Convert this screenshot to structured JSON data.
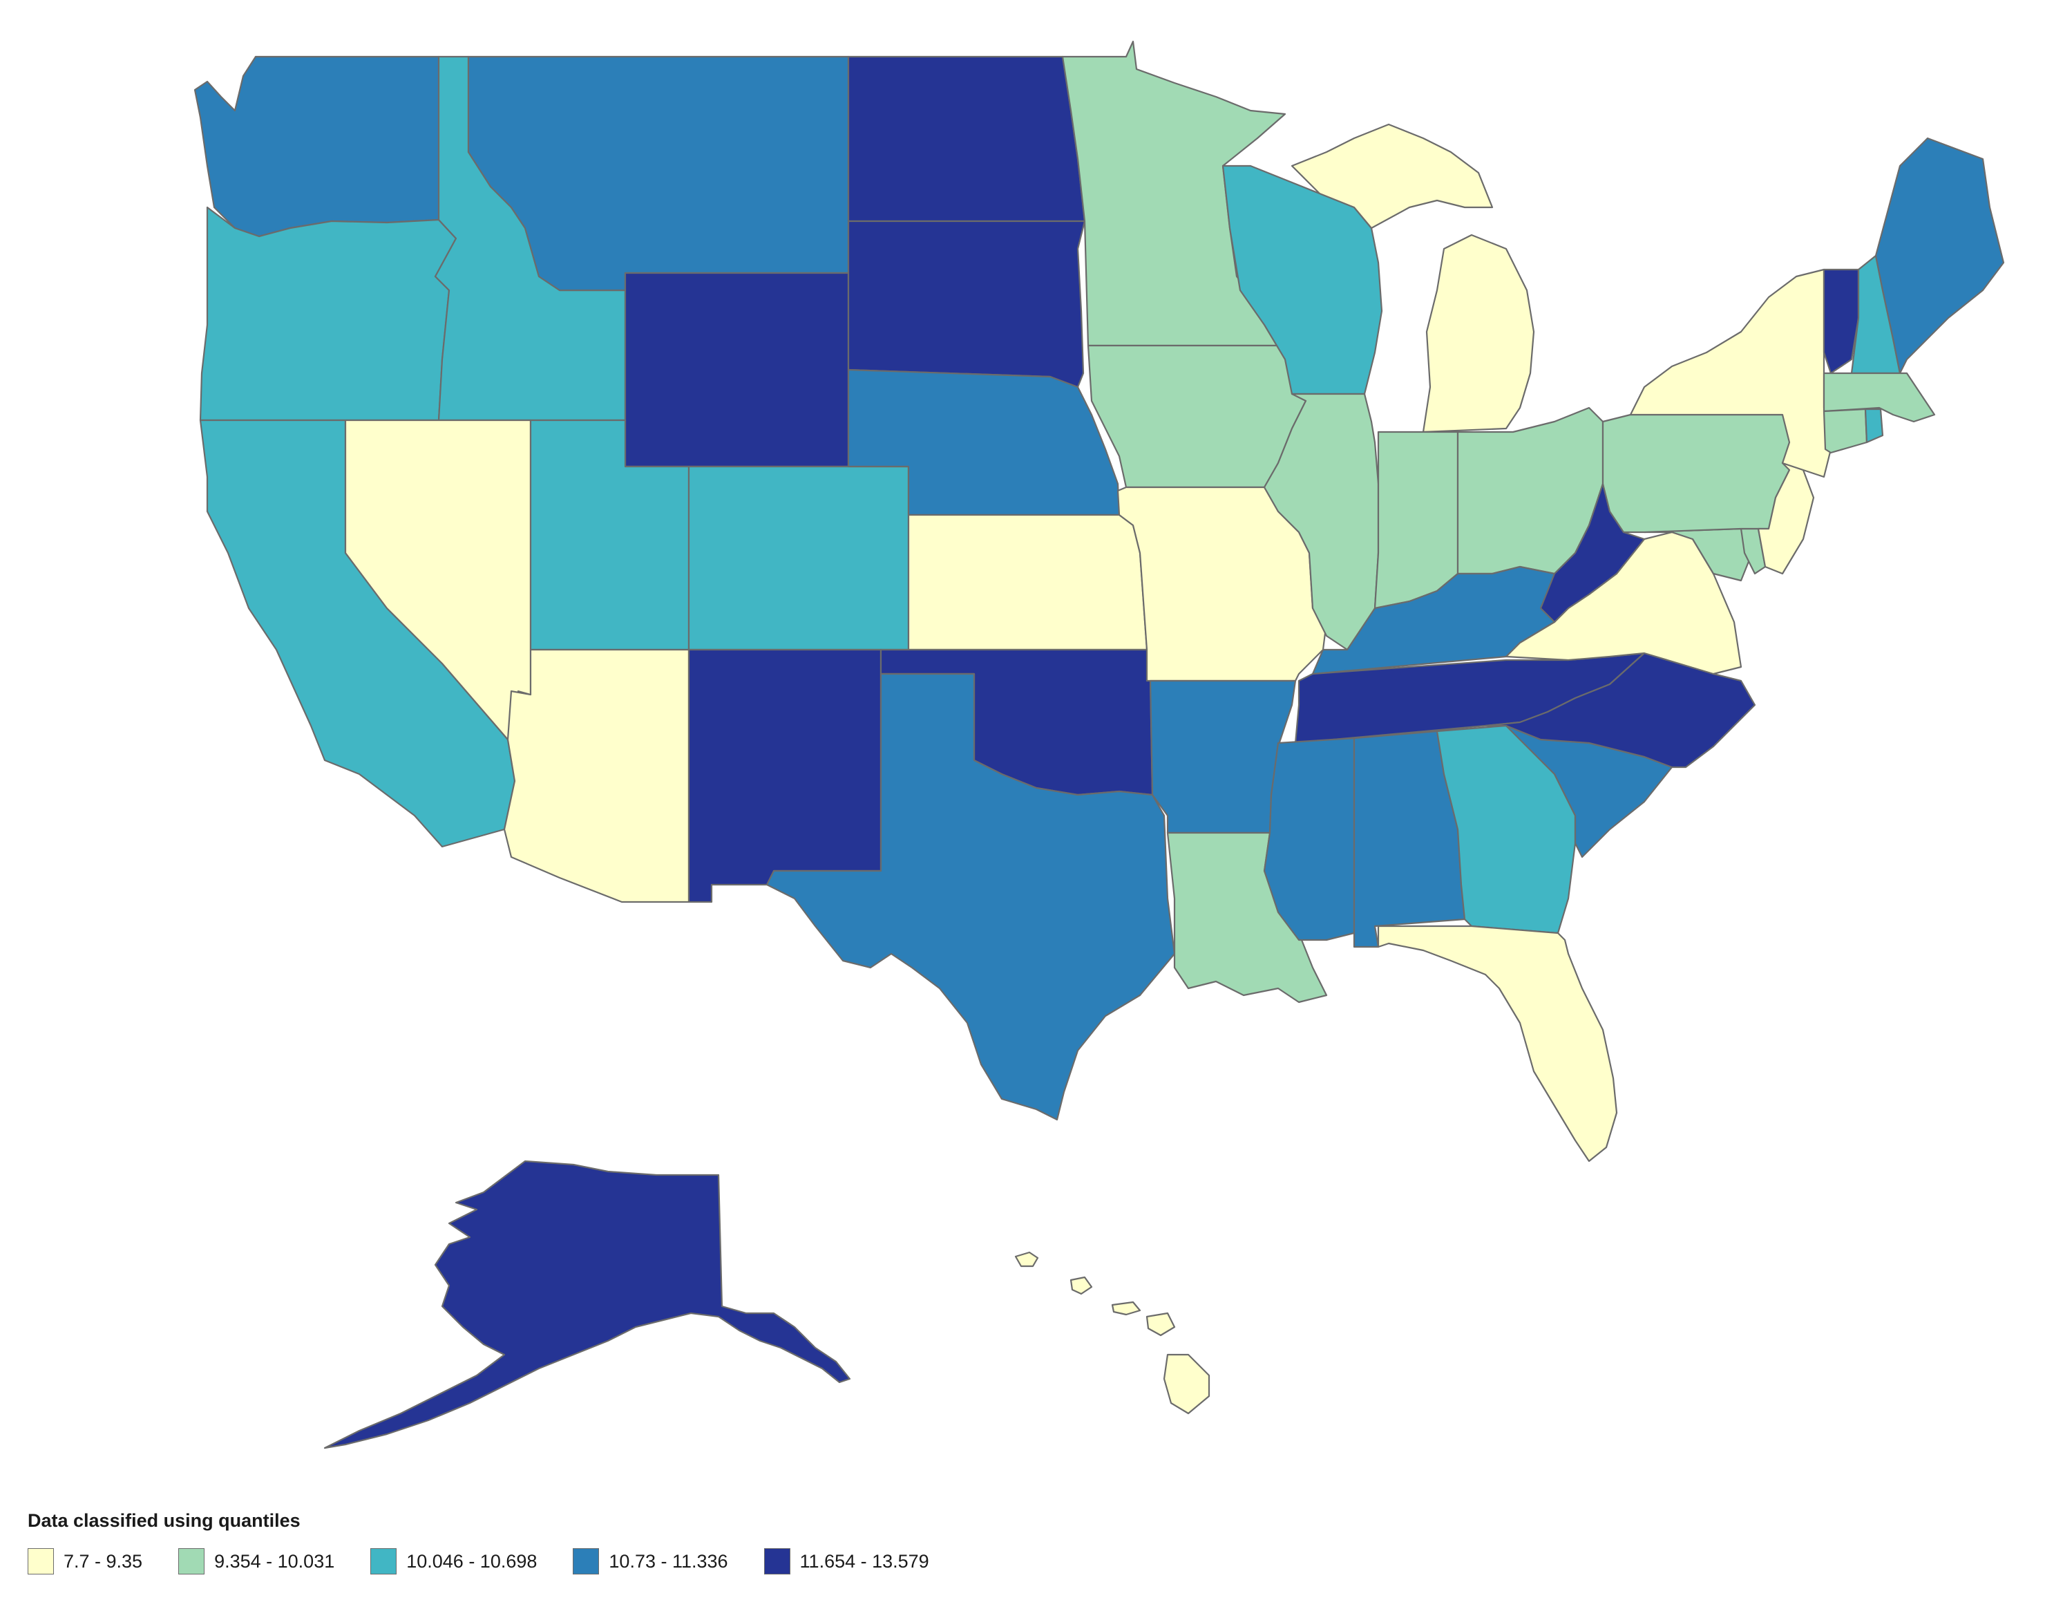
{
  "legend": {
    "title": "Data classified using quantiles",
    "classes": [
      {
        "id": "c1",
        "label": "7.7 - 9.35",
        "color": "#ffffcc"
      },
      {
        "id": "c2",
        "label": "9.354 - 10.031",
        "color": "#a1dab4"
      },
      {
        "id": "c3",
        "label": "10.046 - 10.698",
        "color": "#41b6c4"
      },
      {
        "id": "c4",
        "label": "10.73 - 11.336",
        "color": "#2c7fb8"
      },
      {
        "id": "c5",
        "label": "11.654 - 13.579",
        "color": "#253494"
      }
    ]
  },
  "states": [
    {
      "name": "Washington",
      "class": "c4"
    },
    {
      "name": "Oregon",
      "class": "c3"
    },
    {
      "name": "California",
      "class": "c3"
    },
    {
      "name": "Idaho",
      "class": "c3"
    },
    {
      "name": "Nevada",
      "class": "c1"
    },
    {
      "name": "Montana",
      "class": "c4"
    },
    {
      "name": "Wyoming",
      "class": "c5"
    },
    {
      "name": "Utah",
      "class": "c3"
    },
    {
      "name": "Arizona",
      "class": "c1"
    },
    {
      "name": "Colorado",
      "class": "c3"
    },
    {
      "name": "New Mexico",
      "class": "c5"
    },
    {
      "name": "North Dakota",
      "class": "c5"
    },
    {
      "name": "South Dakota",
      "class": "c5"
    },
    {
      "name": "Nebraska",
      "class": "c4"
    },
    {
      "name": "Kansas",
      "class": "c1"
    },
    {
      "name": "Oklahoma",
      "class": "c5"
    },
    {
      "name": "Texas",
      "class": "c4"
    },
    {
      "name": "Minnesota",
      "class": "c2"
    },
    {
      "name": "Iowa",
      "class": "c2"
    },
    {
      "name": "Missouri",
      "class": "c1"
    },
    {
      "name": "Arkansas",
      "class": "c4"
    },
    {
      "name": "Louisiana",
      "class": "c2"
    },
    {
      "name": "Wisconsin",
      "class": "c3"
    },
    {
      "name": "Illinois",
      "class": "c2"
    },
    {
      "name": "Michigan",
      "class": "c1"
    },
    {
      "name": "Indiana",
      "class": "c2"
    },
    {
      "name": "Ohio",
      "class": "c2"
    },
    {
      "name": "Kentucky",
      "class": "c4"
    },
    {
      "name": "Tennessee",
      "class": "c5"
    },
    {
      "name": "Mississippi",
      "class": "c4"
    },
    {
      "name": "Alabama",
      "class": "c4"
    },
    {
      "name": "Georgia",
      "class": "c3"
    },
    {
      "name": "Florida",
      "class": "c1"
    },
    {
      "name": "South Carolina",
      "class": "c4"
    },
    {
      "name": "North Carolina",
      "class": "c5"
    },
    {
      "name": "Virginia",
      "class": "c1"
    },
    {
      "name": "West Virginia",
      "class": "c5"
    },
    {
      "name": "Maryland",
      "class": "c2"
    },
    {
      "name": "Delaware",
      "class": "c2"
    },
    {
      "name": "Pennsylvania",
      "class": "c2"
    },
    {
      "name": "New Jersey",
      "class": "c1"
    },
    {
      "name": "New York",
      "class": "c1"
    },
    {
      "name": "Connecticut",
      "class": "c2"
    },
    {
      "name": "Rhode Island",
      "class": "c3"
    },
    {
      "name": "Massachusetts",
      "class": "c2"
    },
    {
      "name": "Vermont",
      "class": "c5"
    },
    {
      "name": "New Hampshire",
      "class": "c3"
    },
    {
      "name": "Maine",
      "class": "c4"
    },
    {
      "name": "Alaska",
      "class": "c5"
    },
    {
      "name": "Hawaii",
      "class": "c1"
    }
  ]
}
